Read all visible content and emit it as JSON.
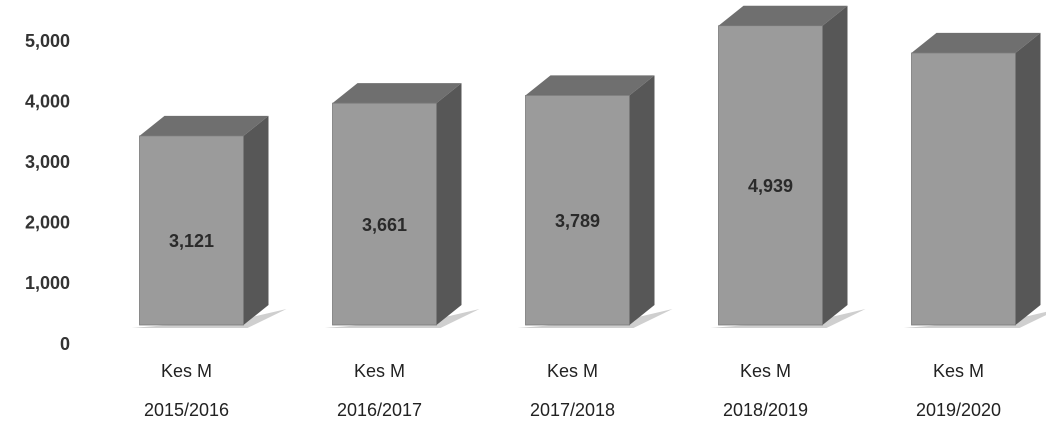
{
  "chart_data": {
    "type": "bar",
    "categories": [
      [
        "Kes M",
        "2015/2016"
      ],
      [
        "Kes M",
        "2016/2017"
      ],
      [
        "Kes M",
        "2017/2018"
      ],
      [
        "Kes M",
        "2018/2019"
      ],
      [
        "Kes M",
        "2019/2020"
      ]
    ],
    "values": [
      3121,
      3661,
      3789,
      4939,
      4490
    ],
    "value_labels": [
      "3,121",
      "3,661",
      "3,789",
      "4,939",
      null
    ],
    "color": "#9b9b9b",
    "ylim": [
      0,
      5000
    ],
    "yticks": [
      0,
      {
        "value": 1000,
        "label": "1,000"
      },
      {
        "value": 2000,
        "label": "2,000"
      },
      {
        "value": 3000,
        "label": "3,000"
      },
      {
        "value": 4000,
        "label": "4,000"
      },
      {
        "value": 5000,
        "label": "5,000"
      }
    ],
    "grid": false
  }
}
